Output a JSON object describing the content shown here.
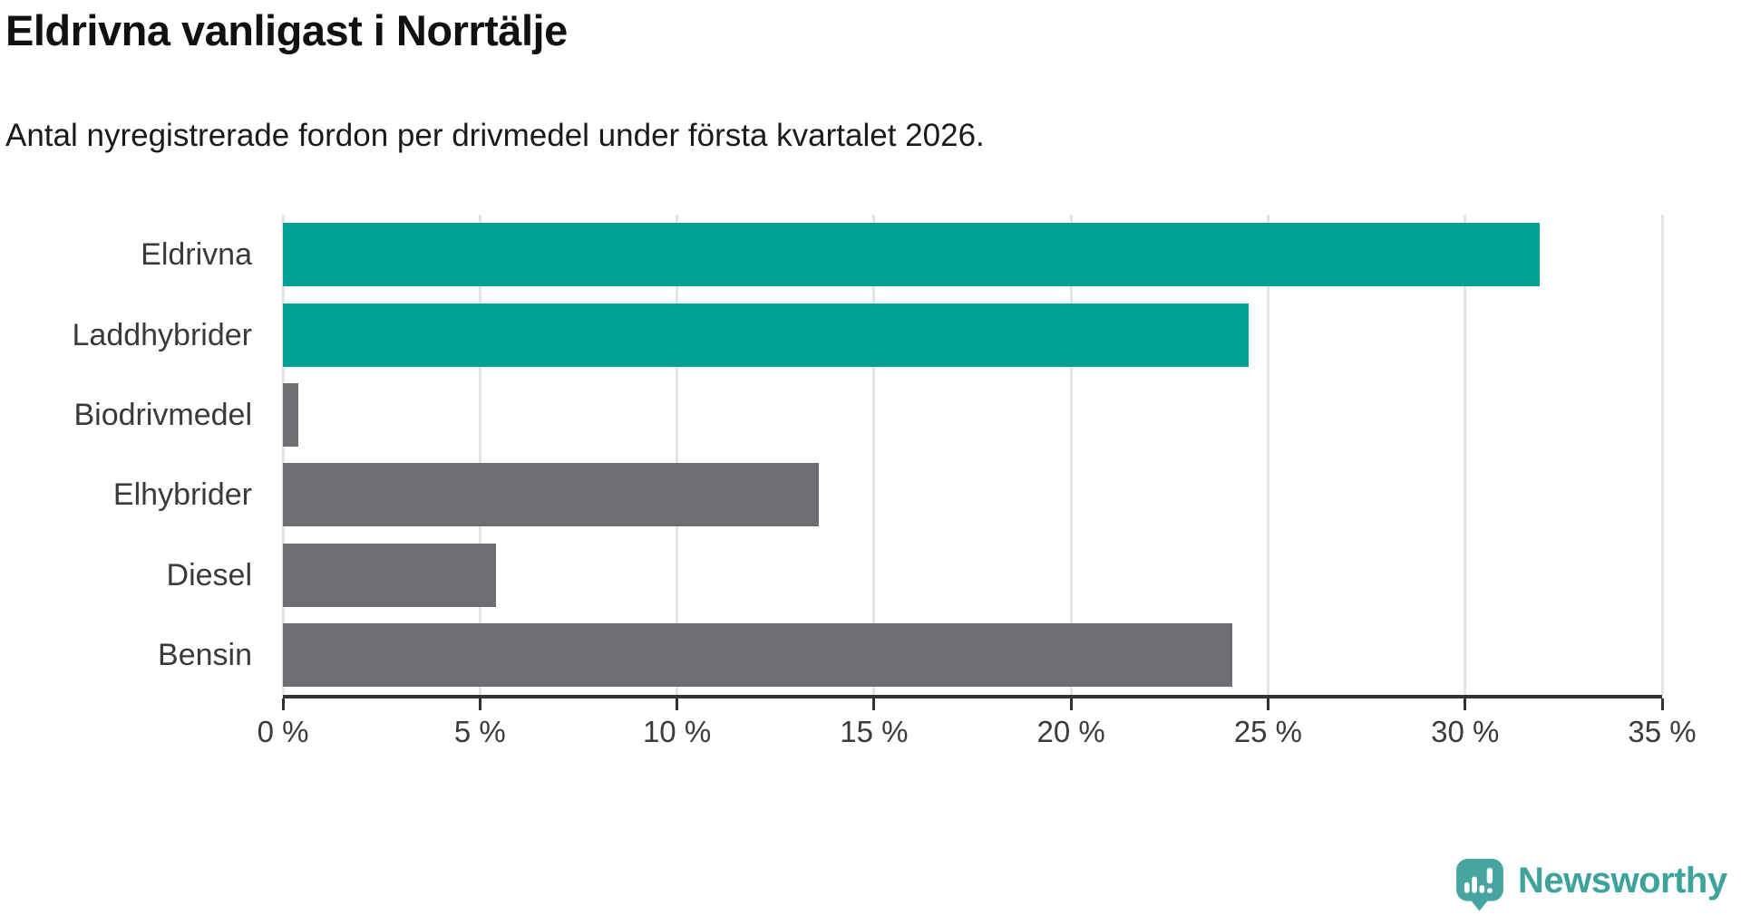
{
  "header": {
    "title": "Eldrivna vanligast i Norrtälje",
    "subtitle": "Antal nyregistrerade fordon per drivmedel under första kvartalet 2026."
  },
  "chart_data": {
    "type": "bar",
    "orientation": "horizontal",
    "title": "Eldrivna vanligast i Norrtälje",
    "subtitle": "Antal nyregistrerade fordon per drivmedel under första kvartalet 2026.",
    "categories": [
      "Eldrivna",
      "Laddhybrider",
      "Biodrivmedel",
      "Elhybrider",
      "Diesel",
      "Bensin"
    ],
    "values": [
      31.9,
      24.5,
      0.4,
      13.6,
      5.4,
      24.1
    ],
    "unit": "%",
    "bar_color_keys": [
      "accent",
      "accent",
      "muted",
      "muted",
      "muted",
      "muted"
    ],
    "colors": {
      "accent": "#00a096",
      "muted": "#6d6d72"
    },
    "xlabel": "",
    "ylabel": "",
    "xlim": [
      0,
      35
    ],
    "x_ticks": [
      0,
      5,
      10,
      15,
      20,
      25,
      30,
      35
    ],
    "x_tick_labels": [
      "0 %",
      "5 %",
      "10 %",
      "15 %",
      "20 %",
      "25 %",
      "30 %",
      "35 %"
    ],
    "grid": true,
    "legend": false
  },
  "footer": {
    "brand": "Newsworthy",
    "brand_color": "#3ea49b",
    "icon_color": "#48a4a0"
  }
}
